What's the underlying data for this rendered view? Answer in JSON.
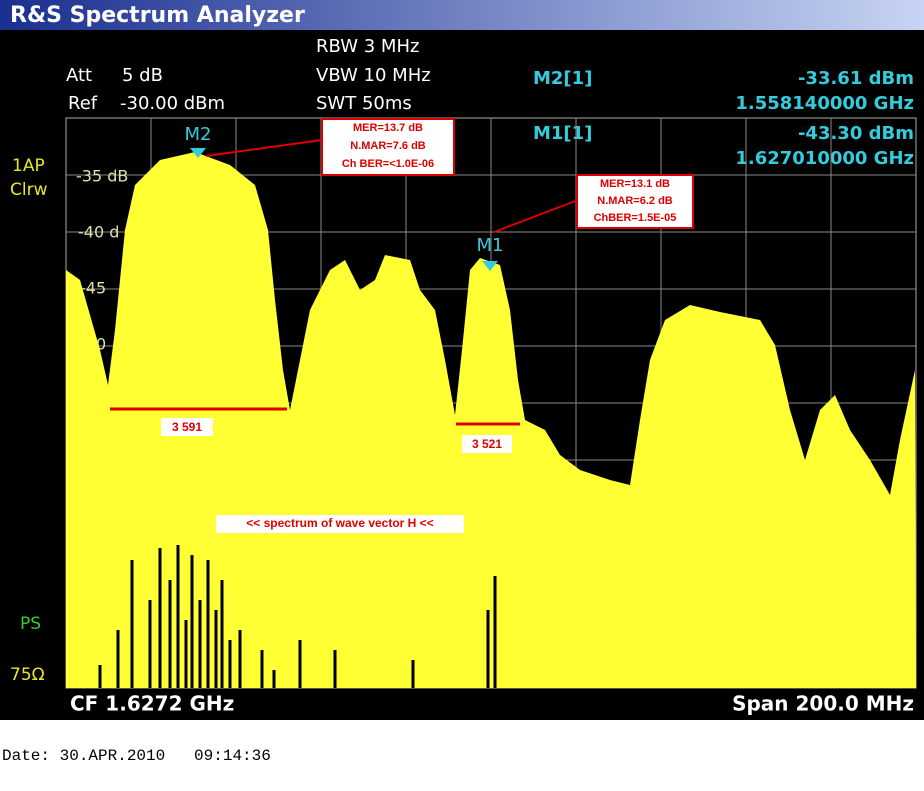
{
  "header": {
    "title": "R&S Spectrum Analyzer"
  },
  "settings": {
    "rbw": "RBW 3 MHz",
    "vbw": "VBW 10 MHz",
    "swt": "SWT 50ms",
    "att_label": "Att",
    "att_value": "5 dB",
    "ref_label": "Ref",
    "ref_value": "-30.00 dBm"
  },
  "markers": [
    {
      "name": "M2[1]",
      "level": "-33.61 dBm",
      "frequency": "1.558140000 GHz",
      "label": "M2"
    },
    {
      "name": "M1[1]",
      "level": "-43.30 dBm",
      "frequency": "1.627010000 GHz",
      "label": "M1"
    }
  ],
  "trace": {
    "detector": "1AP",
    "mode": "Clrw",
    "ps": "PS",
    "impedance": "75Ω"
  },
  "level_labels": [
    "-35 dB",
    "-40 d",
    "-45",
    "0"
  ],
  "annotations": {
    "box_m2": [
      "MER=13.7 dB",
      "N.MAR=7.6 dB",
      "Ch BER=<1.0E-06"
    ],
    "box_m1": [
      "MER=13.1 dB",
      "N.MAR=6.2 dB",
      "ChBER=1.5E-05"
    ],
    "width_m2": "3 591",
    "width_m1": "3 521",
    "caption": "<< spectrum of wave vector H <<"
  },
  "footer": {
    "center_freq": "CF 1.6272 GHz",
    "span": "Span 200.0 MHz",
    "date": "Date: 30.APR.2010   09:14:36"
  }
}
